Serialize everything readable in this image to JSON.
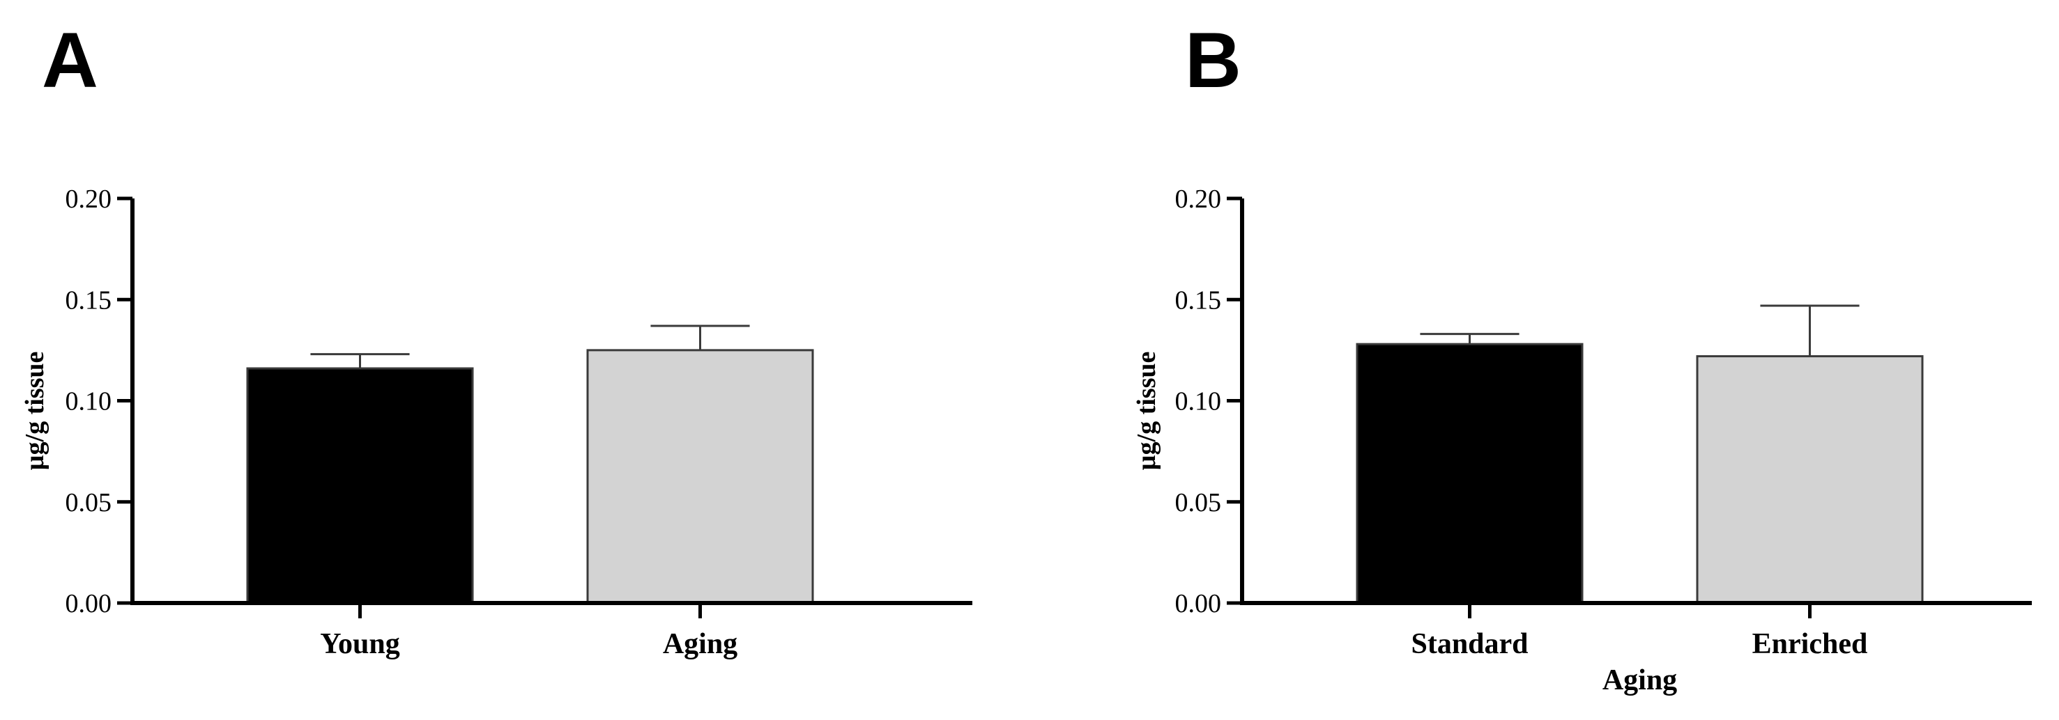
{
  "chart_data": [
    {
      "type": "bar",
      "panel_label": "A",
      "title": "",
      "xlabel": "",
      "ylabel": "µg/g tissue",
      "ylim": [
        0,
        0.2
      ],
      "yticks": [
        "0.00",
        "0.05",
        "0.10",
        "0.15",
        "0.20"
      ],
      "categories": [
        "Young",
        "Aging"
      ],
      "values": [
        0.116,
        0.125
      ],
      "errors": [
        0.007,
        0.012
      ],
      "colors": [
        "#000000",
        "#d3d3d3"
      ],
      "grid": false,
      "legend": "none"
    },
    {
      "type": "bar",
      "panel_label": "B",
      "title": "",
      "xlabel": "Aging",
      "ylabel": "µg/g tissue",
      "ylim": [
        0,
        0.2
      ],
      "yticks": [
        "0.00",
        "0.05",
        "0.10",
        "0.15",
        "0.20"
      ],
      "categories": [
        "Standard",
        "Enriched"
      ],
      "values": [
        0.128,
        0.122
      ],
      "errors": [
        0.005,
        0.025
      ],
      "colors": [
        "#000000",
        "#d3d3d3"
      ],
      "grid": false,
      "legend": "none"
    }
  ]
}
